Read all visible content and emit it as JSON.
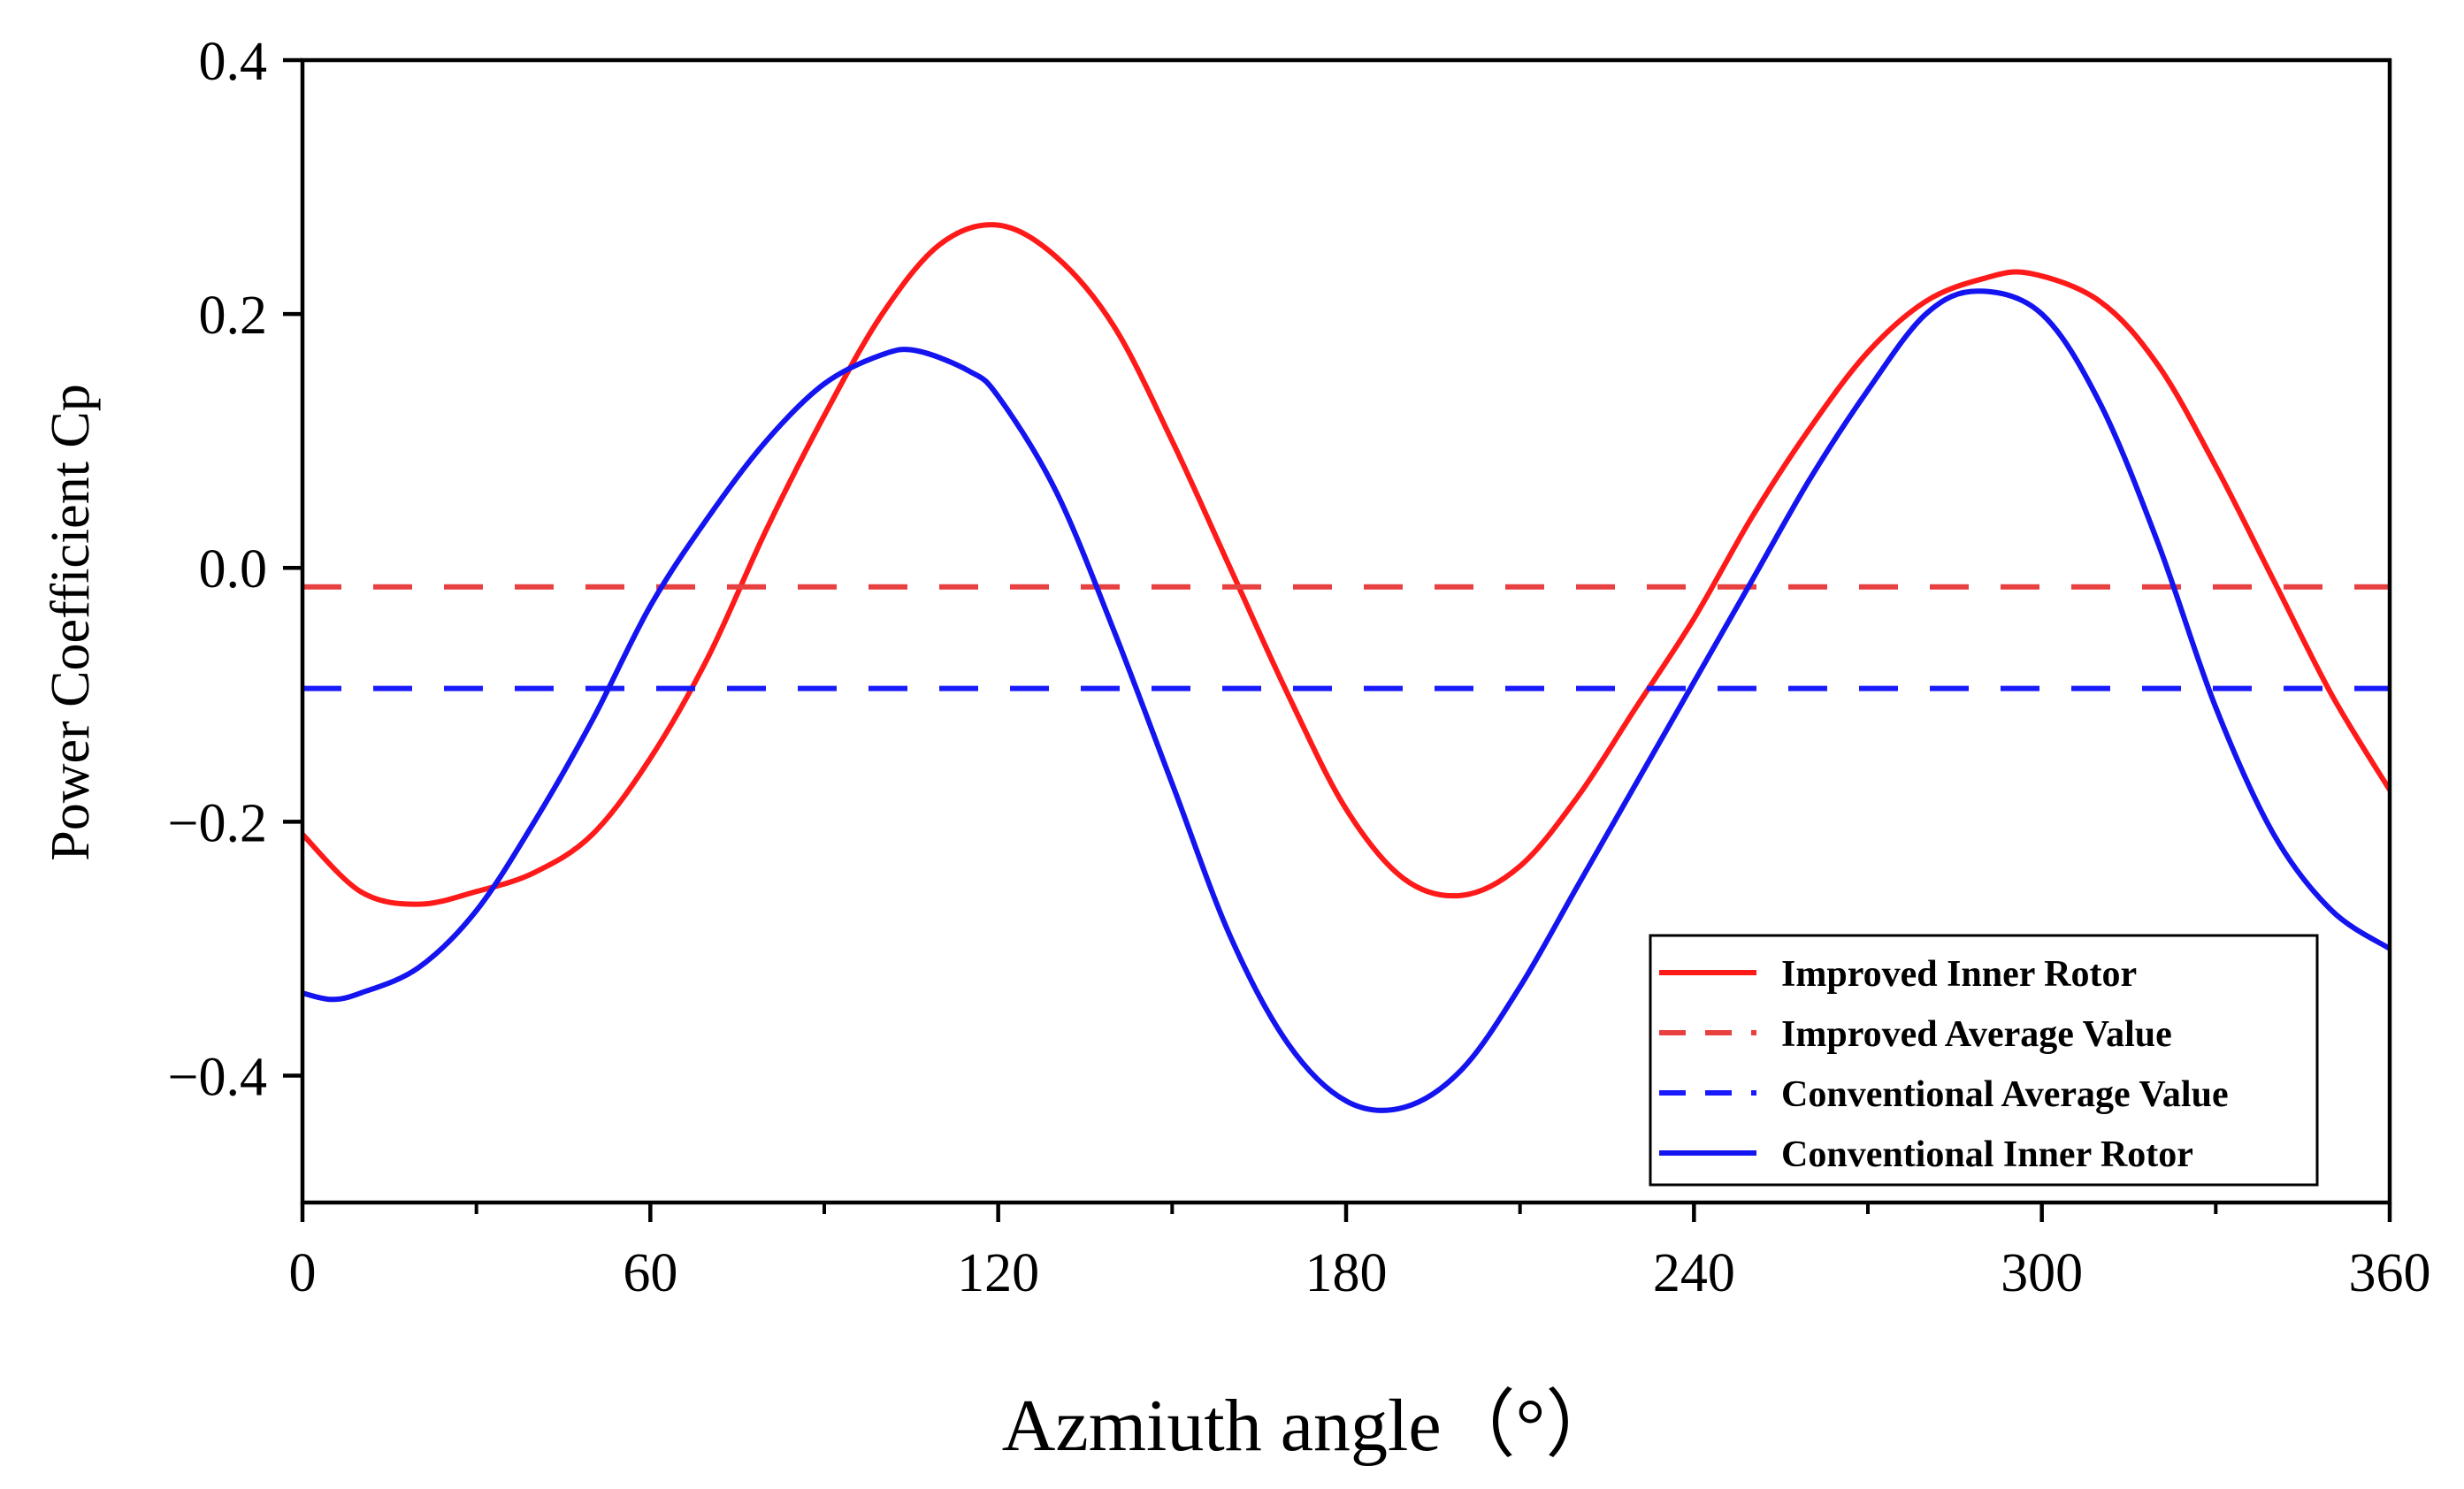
{
  "chart_data": {
    "type": "line",
    "title": "",
    "xlabel": "Azmiuth angle（°）",
    "ylabel": "Power Coefficient Cp",
    "xlim": [
      0,
      360
    ],
    "ylim": [
      -0.5,
      0.4
    ],
    "xticks": [
      0,
      60,
      120,
      180,
      240,
      300,
      360
    ],
    "xtick_labels": [
      "0",
      "60",
      "120",
      "180",
      "240",
      "300",
      "360"
    ],
    "yticks": [
      0.4,
      0.2,
      0.0,
      -0.2,
      -0.4
    ],
    "ytick_labels": [
      "0.4",
      "0.2",
      "0.0",
      "−0.2",
      "−0.4"
    ],
    "legend_position": "bottom-right",
    "series": [
      {
        "name": "Improved Inner Rotor",
        "color": "#ff1a1a",
        "style": "solid",
        "x": [
          0,
          10,
          20,
          30,
          40,
          50,
          60,
          70,
          80,
          90,
          100,
          110,
          120,
          130,
          140,
          150,
          160,
          170,
          180,
          190,
          200,
          210,
          220,
          230,
          240,
          250,
          260,
          270,
          280,
          290,
          298,
          310,
          320,
          330,
          340,
          350,
          360
        ],
        "y": [
          -0.21,
          -0.255,
          -0.265,
          -0.255,
          -0.24,
          -0.21,
          -0.15,
          -0.07,
          0.03,
          0.12,
          0.2,
          0.255,
          0.27,
          0.245,
          0.19,
          0.1,
          0.0,
          -0.1,
          -0.19,
          -0.245,
          -0.258,
          -0.235,
          -0.18,
          -0.11,
          -0.04,
          0.04,
          0.11,
          0.17,
          0.21,
          0.228,
          0.232,
          0.21,
          0.16,
          0.08,
          -0.01,
          -0.1,
          -0.175
        ]
      },
      {
        "name": "Improved Average Value",
        "color": "#e84040",
        "style": "dashed",
        "x": [
          0,
          360
        ],
        "y": [
          -0.015,
          -0.015
        ]
      },
      {
        "name": "Conventional Average Value",
        "color": "#1a1aff",
        "style": "dashed",
        "x": [
          0,
          360
        ],
        "y": [
          -0.095,
          -0.095
        ]
      },
      {
        "name": "Conventional Inner Rotor",
        "color": "#1414f0",
        "style": "solid",
        "x": [
          0,
          5,
          10,
          20,
          30,
          40,
          50,
          60,
          70,
          80,
          90,
          100,
          106,
          115,
          120,
          130,
          140,
          150,
          160,
          170,
          180,
          190,
          200,
          210,
          220,
          230,
          240,
          250,
          260,
          270,
          280,
          289,
          300,
          310,
          320,
          330,
          340,
          350,
          360
        ],
        "y": [
          -0.335,
          -0.34,
          -0.335,
          -0.315,
          -0.27,
          -0.2,
          -0.12,
          -0.03,
          0.04,
          0.1,
          0.145,
          0.168,
          0.171,
          0.155,
          0.135,
          0.06,
          -0.05,
          -0.17,
          -0.29,
          -0.375,
          -0.42,
          -0.425,
          -0.395,
          -0.33,
          -0.25,
          -0.17,
          -0.09,
          -0.01,
          0.07,
          0.14,
          0.2,
          0.218,
          0.2,
          0.13,
          0.02,
          -0.11,
          -0.21,
          -0.27,
          -0.3
        ]
      }
    ]
  }
}
